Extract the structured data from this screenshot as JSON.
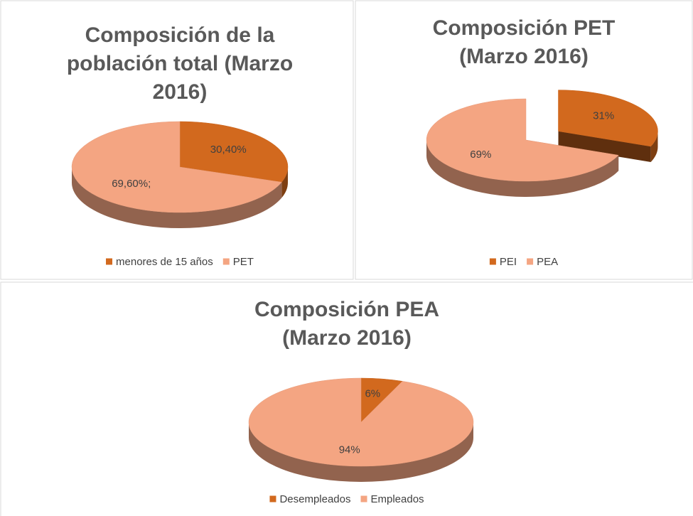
{
  "chart_data": [
    {
      "type": "pie",
      "title": "Composición de la población total (Marzo 2016)",
      "categories": [
        "menores de 15 años",
        "PET"
      ],
      "values": [
        30.4,
        69.6
      ],
      "value_labels": [
        "30,40%",
        "69,60%;"
      ],
      "colors": [
        "#d2691e",
        "#f4a582"
      ],
      "legend": "bottom"
    },
    {
      "type": "pie",
      "title": "Composición PET (Marzo 2016)",
      "categories": [
        "PEI",
        "PEA"
      ],
      "values": [
        31,
        69
      ],
      "value_labels": [
        "31%",
        "69%"
      ],
      "colors": [
        "#d2691e",
        "#f4a582"
      ],
      "legend": "bottom",
      "exploded": [
        0
      ]
    },
    {
      "type": "pie",
      "title": "Composición PEA (Marzo 2016)",
      "categories": [
        "Desempleados",
        "Empleados"
      ],
      "values": [
        6,
        94
      ],
      "value_labels": [
        "6%",
        "94%"
      ],
      "colors": [
        "#d2691e",
        "#f4a582"
      ],
      "legend": "bottom"
    }
  ]
}
